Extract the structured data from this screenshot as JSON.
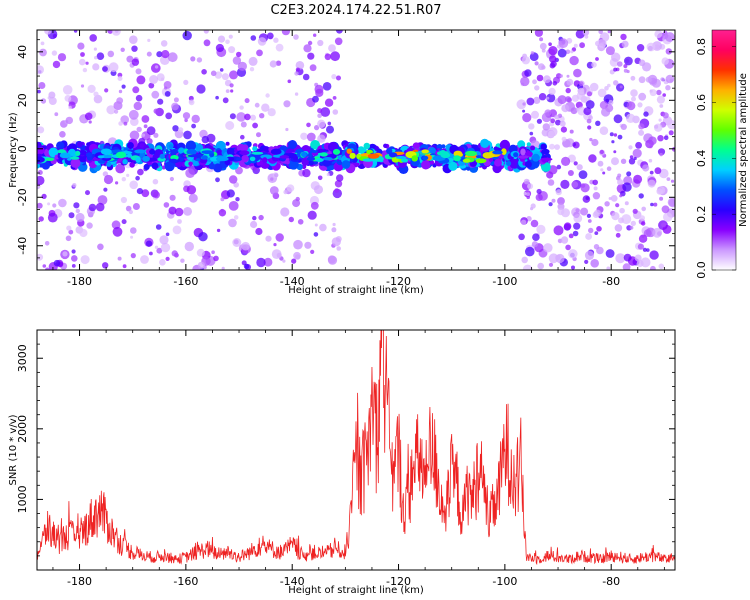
{
  "title": "C2E3.2024.174.22.51.R07",
  "chart_data": [
    {
      "type": "heatmap",
      "title": "C2E3.2024.174.22.51.R07",
      "xlabel": "Height of straight line (km)",
      "ylabel": "Frequency (Hz)",
      "xlim": [
        -188,
        -68
      ],
      "ylim": [
        -50,
        49
      ],
      "xticks": [
        -180,
        -160,
        -140,
        -120,
        -100,
        -80
      ],
      "yticks": [
        -40,
        -20,
        0,
        20,
        40
      ],
      "colorbar": {
        "label": "Normalized spectral amplitude",
        "ticks": [
          0.0,
          0.2,
          0.4,
          0.6,
          0.8
        ],
        "range": [
          0,
          0.86
        ],
        "colors": [
          "#ffffff",
          "#cc99ff",
          "#8800ff",
          "#2a00ff",
          "#0050ff",
          "#00d0ff",
          "#00ff90",
          "#60ff00",
          "#d0ff00",
          "#ffb000",
          "#ff3000",
          "#ff0060",
          "#ff2090"
        ]
      },
      "band": {
        "center_frequency": -3,
        "half_width": 5,
        "segments": [
          {
            "x_start": -188,
            "x_end": -130,
            "intensity": 0.45
          },
          {
            "x_start": -130,
            "x_end": -97,
            "intensity": 0.7
          },
          {
            "x_start": -97,
            "x_end": -92,
            "intensity": 0.25
          }
        ]
      },
      "noise_regions": [
        {
          "x_start": -188,
          "x_end": -131,
          "density": "medium"
        },
        {
          "x_start": -97,
          "x_end": -68,
          "density": "high"
        }
      ],
      "grid": false
    },
    {
      "type": "line",
      "xlabel": "Height of straight line (km)",
      "ylabel": "SNR (10 * v/v)",
      "xlim": [
        -188,
        -68
      ],
      "ylim": [
        0,
        3400
      ],
      "xticks": [
        -180,
        -160,
        -140,
        -120,
        -100,
        -80
      ],
      "yticks": [
        1000,
        2000,
        3000
      ],
      "series": [
        {
          "color": "#ee2222",
          "x": [
            -188,
            -186,
            -184,
            -182,
            -180,
            -178,
            -176,
            -174,
            -172,
            -170,
            -168,
            -166,
            -164,
            -162,
            -160,
            -158,
            -156,
            -154,
            -152,
            -150,
            -148,
            -146,
            -144,
            -142,
            -140,
            -138,
            -136,
            -134,
            -132,
            -130,
            -129,
            -128,
            -127,
            -126,
            -125,
            -124,
            -123,
            -122,
            -121,
            -120,
            -119,
            -118,
            -117,
            -116,
            -115,
            -114,
            -113,
            -112,
            -111,
            -110,
            -109,
            -108,
            -107,
            -106,
            -105,
            -104,
            -103,
            -102,
            -101,
            -100,
            -99,
            -98,
            -97,
            -96,
            -94,
            -92,
            -90,
            -88,
            -86,
            -84,
            -82,
            -80,
            -78,
            -76,
            -74,
            -72,
            -70,
            -68
          ],
          "values": [
            200,
            600,
            400,
            500,
            450,
            700,
            850,
            550,
            350,
            250,
            200,
            180,
            200,
            150,
            180,
            250,
            300,
            220,
            250,
            180,
            250,
            350,
            300,
            250,
            350,
            200,
            250,
            220,
            300,
            250,
            700,
            1550,
            1300,
            1550,
            2250,
            1900,
            3400,
            2000,
            1250,
            1700,
            800,
            1100,
            1400,
            1650,
            1200,
            1700,
            1500,
            1000,
            850,
            1350,
            1200,
            700,
            1150,
            1000,
            1450,
            1200,
            700,
            900,
            1150,
            1750,
            1600,
            1200,
            1500,
            200,
            150,
            200,
            180,
            150,
            200,
            180,
            150,
            200,
            180,
            150,
            180,
            200,
            150,
            180
          ]
        }
      ],
      "grid": false
    }
  ]
}
